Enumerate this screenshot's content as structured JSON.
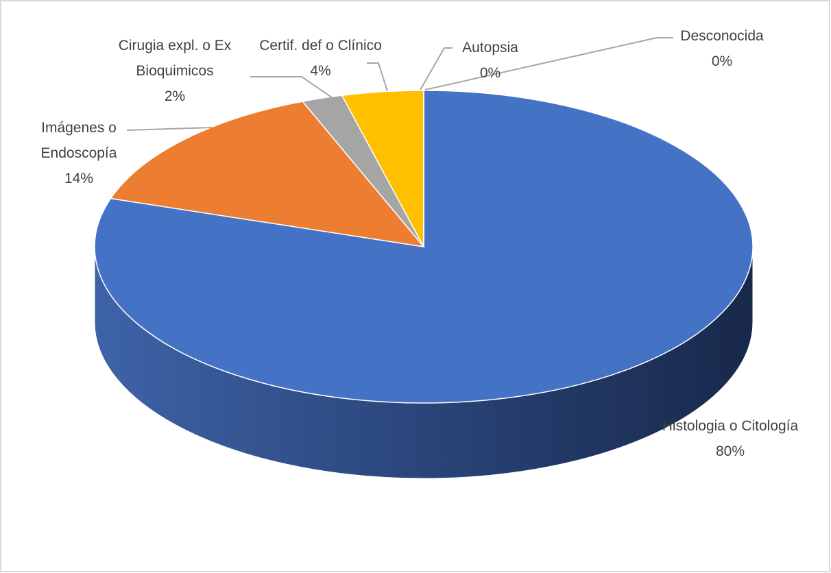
{
  "chart_data": {
    "type": "pie",
    "categories": [
      "Histologia o Citología",
      "Imágenes o Endoscopía",
      "Cirugia expl. o Ex Bioquimicos",
      "Certif. def  o Clínico",
      "Autopsia",
      "Desconocida"
    ],
    "values": [
      80,
      14,
      2,
      4,
      0,
      0
    ],
    "value_labels": [
      "80%",
      "14%",
      "2%",
      "4%",
      "0%",
      "0%"
    ],
    "colors": [
      "#4472c4",
      "#ed7d31",
      "#a5a5a5",
      "#ffc000",
      "#5b9bd5",
      "#70ad47"
    ],
    "three_d": true
  }
}
